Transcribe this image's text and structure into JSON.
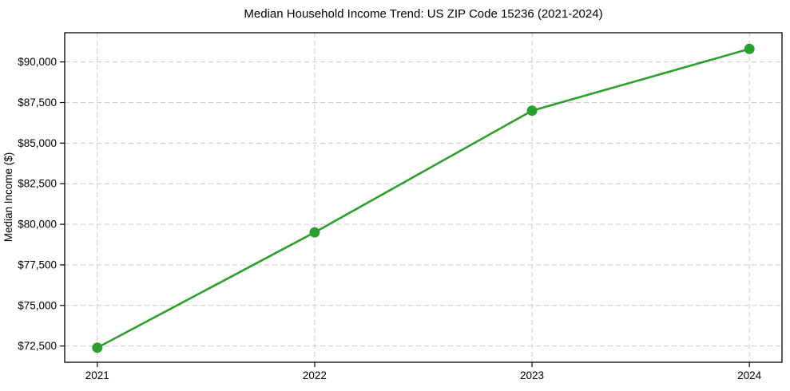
{
  "chart_data": {
    "type": "line",
    "title": "Median Household Income Trend: US ZIP Code 15236 (2021-2024)",
    "xlabel": "",
    "ylabel": "Median Income ($)",
    "x": [
      2021,
      2022,
      2023,
      2024
    ],
    "x_tick_labels": [
      "2021",
      "2022",
      "2023",
      "2024"
    ],
    "series": [
      {
        "name": "Median Household Income",
        "values": [
          72400,
          79500,
          87000,
          90800
        ],
        "color": "#2ca02c",
        "marker": "circle"
      }
    ],
    "y_ticks": [
      72500,
      75000,
      77500,
      80000,
      82500,
      85000,
      87500,
      90000
    ],
    "y_tick_labels": [
      "$72,500",
      "$75,000",
      "$77,500",
      "$80,000",
      "$82,500",
      "$85,000",
      "$87,500",
      "$90,000"
    ],
    "ylim": [
      71500,
      91800
    ],
    "xlim": [
      2020.85,
      2024.15
    ],
    "grid": true,
    "grid_style": "dashed",
    "legend": "none",
    "colors": {
      "line": "#2ca02c",
      "grid": "#c9c9c9",
      "axis": "#000000",
      "text": "#000000",
      "background": "#ffffff"
    }
  }
}
